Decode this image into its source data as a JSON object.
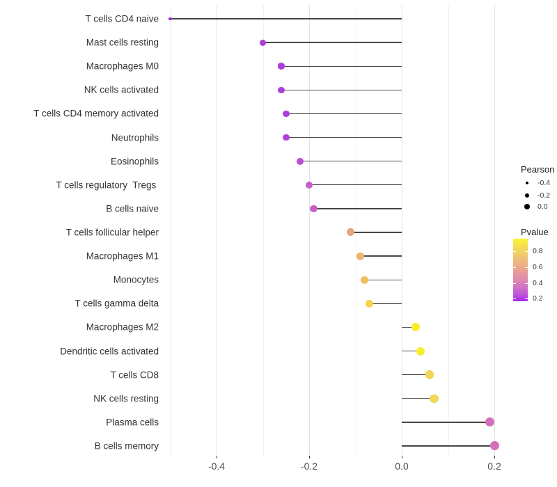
{
  "chart_data": {
    "type": "scatter",
    "variant": "lollipop",
    "title": "",
    "xlabel": "",
    "ylabel": "",
    "x_axis": {
      "major_ticks": [
        -0.4,
        -0.2,
        0.0,
        0.2
      ],
      "minor_ticks": [
        -0.5,
        -0.3,
        -0.1,
        0.1
      ],
      "range": [
        -0.517,
        0.241
      ],
      "grid": "vertical-only"
    },
    "points": [
      {
        "label": "T cells CD4 naive",
        "pearson": -0.5,
        "pvalue": 0.05,
        "color": "#9C2BE2",
        "size": 4.5
      },
      {
        "label": "Mast cells resting",
        "pearson": -0.3,
        "pvalue": 0.12,
        "color": "#AC3DDC",
        "size": 9
      },
      {
        "label": "Macrophages M0",
        "pearson": -0.26,
        "pvalue": 0.13,
        "color": "#AC3DDC",
        "size": 9.5
      },
      {
        "label": "NK cells activated",
        "pearson": -0.26,
        "pvalue": 0.13,
        "color": "#AC3DDC",
        "size": 9.5
      },
      {
        "label": "T cells CD4 memory activated",
        "pearson": -0.25,
        "pvalue": 0.13,
        "color": "#AC3DDC",
        "size": 9.5
      },
      {
        "label": "Neutrophils",
        "pearson": -0.25,
        "pvalue": 0.14,
        "color": "#AE40DB",
        "size": 9.5
      },
      {
        "label": "Eosinophils",
        "pearson": -0.22,
        "pvalue": 0.18,
        "color": "#B94ED4",
        "size": 10
      },
      {
        "label": "T cells regulatory  Tregs ",
        "pearson": -0.2,
        "pvalue": 0.25,
        "color": "#C75FC9",
        "size": 10
      },
      {
        "label": "B cells naive",
        "pearson": -0.19,
        "pvalue": 0.26,
        "color": "#C75FC9",
        "size": 10.5
      },
      {
        "label": "T cells follicular helper",
        "pearson": -0.11,
        "pvalue": 0.55,
        "color": "#E8A383",
        "size": 11
      },
      {
        "label": "Macrophages M1",
        "pearson": -0.09,
        "pvalue": 0.62,
        "color": "#ECB46C",
        "size": 11
      },
      {
        "label": "Monocytes",
        "pearson": -0.08,
        "pvalue": 0.65,
        "color": "#EDC163",
        "size": 11
      },
      {
        "label": "T cells gamma delta",
        "pearson": -0.07,
        "pvalue": 0.72,
        "color": "#F2D44D",
        "size": 11.5
      },
      {
        "label": "Macrophages M2",
        "pearson": 0.03,
        "pvalue": 0.86,
        "color": "#F6ED2C",
        "size": 12
      },
      {
        "label": "Dendritic cells activated",
        "pearson": 0.04,
        "pvalue": 0.86,
        "color": "#F6ED2C",
        "size": 12
      },
      {
        "label": "T cells CD8",
        "pearson": 0.06,
        "pvalue": 0.76,
        "color": "#EFD75A",
        "size": 12.5
      },
      {
        "label": "NK cells resting",
        "pearson": 0.07,
        "pvalue": 0.76,
        "color": "#EFD75A",
        "size": 12.5
      },
      {
        "label": "Plasma cells",
        "pearson": 0.19,
        "pvalue": 0.32,
        "color": "#D36FB9",
        "size": 13
      },
      {
        "label": "B cells memory",
        "pearson": 0.2,
        "pvalue": 0.32,
        "color": "#D36FB9",
        "size": 13
      }
    ],
    "legend": {
      "size": {
        "title": "Pearson",
        "dot_color": "#000000",
        "entries": [
          {
            "value": -0.4,
            "diameter": 4
          },
          {
            "value": -0.2,
            "diameter": 6
          },
          {
            "value": 0.0,
            "diameter": 8
          }
        ]
      },
      "color": {
        "title": "Pvalue",
        "ticks": [
          {
            "value": 0.8,
            "frac": 0.2
          },
          {
            "value": 0.6,
            "frac": 0.455
          },
          {
            "value": 0.4,
            "frac": 0.71
          },
          {
            "value": 0.2,
            "frac": 0.955
          }
        ],
        "gradient_stops": [
          {
            "color": "#F9F632",
            "pos": 0
          },
          {
            "color": "#F5DE52",
            "pos": 12
          },
          {
            "color": "#F0C672",
            "pos": 28
          },
          {
            "color": "#EAAA8A",
            "pos": 45
          },
          {
            "color": "#E295A0",
            "pos": 58
          },
          {
            "color": "#D77FB8",
            "pos": 72
          },
          {
            "color": "#C159D6",
            "pos": 88
          },
          {
            "color": "#A827EB",
            "pos": 100
          }
        ]
      }
    },
    "colors": {
      "stem": "#464646",
      "grid_major": "#E3E3E3",
      "grid_minor": "#F1F1F1",
      "axis_tick": "#333333",
      "axis_text": "#4d4d4d",
      "label_text": "#333333",
      "background": "#FFFFFF"
    }
  }
}
